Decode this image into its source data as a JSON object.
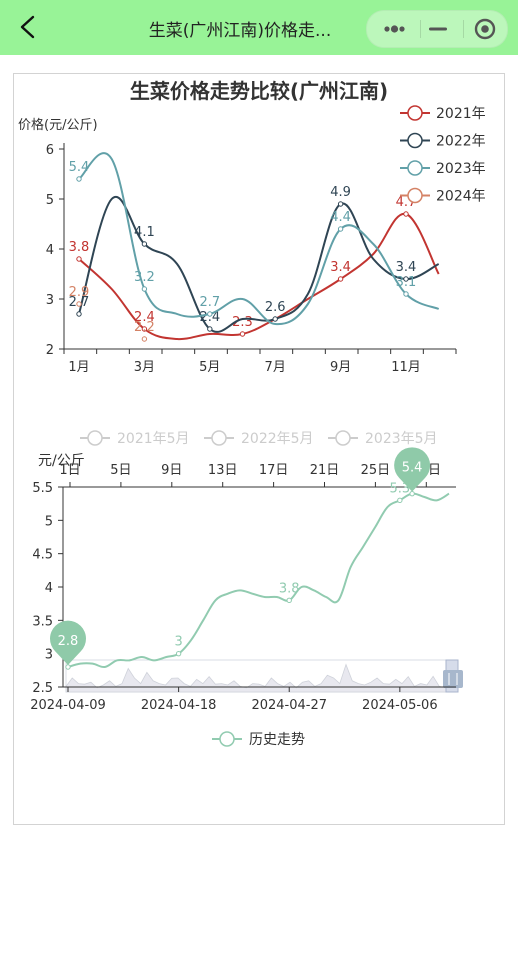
{
  "header": {
    "title": "生菜(广州江南)价格走...",
    "back_icon": "back-arrow-icon",
    "more_icon": "more-dots-icon",
    "minimize_icon": "minimize-icon",
    "close_icon": "target-circle-icon"
  },
  "chart_data": [
    {
      "type": "line",
      "title": "生菜价格走势比较(广州江南)",
      "ylabel": "价格(元/公斤)",
      "ylim": [
        2,
        6
      ],
      "yticks": [
        "2",
        "3",
        "4",
        "5",
        "6"
      ],
      "x": [
        1,
        2,
        3,
        4,
        5,
        6,
        7,
        8,
        9,
        10,
        11,
        12
      ],
      "xticks": [
        "1月",
        "3月",
        "5月",
        "7月",
        "9月",
        "11月"
      ],
      "legend_position": "top-right",
      "series": [
        {
          "name": "2021年",
          "color": "#c23531",
          "labels": [
            "3.8",
            "2.4",
            "2.3",
            "3.4",
            "4.7"
          ],
          "values": [
            3.8,
            3.2,
            2.4,
            2.2,
            2.3,
            2.3,
            2.6,
            3.0,
            3.4,
            3.9,
            4.7,
            3.5
          ]
        },
        {
          "name": "2022年",
          "color": "#2f4554",
          "labels": [
            "2.7",
            "4.1",
            "2.4",
            "2.6",
            "4.9",
            "3.4"
          ],
          "values": [
            2.7,
            5.0,
            4.1,
            3.7,
            2.4,
            2.6,
            2.6,
            3.1,
            4.9,
            3.8,
            3.4,
            3.7
          ]
        },
        {
          "name": "2023年",
          "color": "#61a0a8",
          "labels": [
            "5.4",
            "3.2",
            "2.7",
            "4.4",
            "3.1"
          ],
          "values": [
            5.4,
            5.8,
            3.2,
            2.7,
            2.7,
            3.0,
            2.5,
            2.9,
            4.4,
            4.1,
            3.1,
            2.8
          ]
        },
        {
          "name": "2024年",
          "color": "#d48265",
          "labels": [
            "2.9",
            "2.2"
          ],
          "values": [
            2.9,
            null,
            2.2,
            null,
            null,
            null,
            null,
            null,
            null,
            null,
            null,
            null
          ]
        }
      ]
    },
    {
      "type": "line",
      "ylabel": "元/公斤",
      "ylim": [
        2.5,
        5.5
      ],
      "yticks": [
        "2.5",
        "3",
        "3.5",
        "4",
        "4.5",
        "5",
        "5.5"
      ],
      "legend_position": "top",
      "legend_top": [
        {
          "name": "2021年5月",
          "color": "#cccccc"
        },
        {
          "name": "2022年5月",
          "color": "#cccccc"
        },
        {
          "name": "2023年5月",
          "color": "#cccccc"
        }
      ],
      "top_axis_ticks": [
        "1日",
        "5日",
        "9日",
        "13日",
        "17日",
        "21日",
        "25日",
        "29日"
      ],
      "bottom_axis_ticks": [
        "2024-04-09",
        "2024-04-18",
        "2024-04-27",
        "2024-05-06"
      ],
      "series": [
        {
          "name": "历史走势",
          "color": "#91cbb0",
          "x": [
            "2024-04-09",
            "2024-04-10",
            "2024-04-11",
            "2024-04-12",
            "2024-04-13",
            "2024-04-14",
            "2024-04-15",
            "2024-04-16",
            "2024-04-17",
            "2024-04-18",
            "2024-04-19",
            "2024-04-20",
            "2024-04-21",
            "2024-04-22",
            "2024-04-23",
            "2024-04-24",
            "2024-04-25",
            "2024-04-26",
            "2024-04-27",
            "2024-04-28",
            "2024-04-29",
            "2024-04-30",
            "2024-05-01",
            "2024-05-02",
            "2024-05-03",
            "2024-05-04",
            "2024-05-05",
            "2024-05-06",
            "2024-05-07",
            "2024-05-08",
            "2024-05-09",
            "2024-05-10"
          ],
          "values": [
            2.8,
            2.85,
            2.85,
            2.8,
            2.9,
            2.9,
            2.95,
            2.9,
            2.95,
            3.0,
            3.2,
            3.5,
            3.8,
            3.9,
            3.95,
            3.9,
            3.85,
            3.85,
            3.8,
            4.0,
            3.95,
            3.85,
            3.8,
            4.3,
            4.6,
            4.9,
            5.2,
            5.3,
            5.4,
            5.35,
            5.3,
            5.4
          ],
          "point_labels": [
            {
              "i": 9,
              "label": "3"
            },
            {
              "i": 18,
              "label": "3.8"
            },
            {
              "i": 27,
              "label": "5.3"
            }
          ],
          "min_pin": {
            "i": 0,
            "label": "2.8"
          },
          "max_pin": {
            "i": 28,
            "label": "5.4"
          }
        }
      ],
      "legend_bottom": "历史走势"
    }
  ]
}
